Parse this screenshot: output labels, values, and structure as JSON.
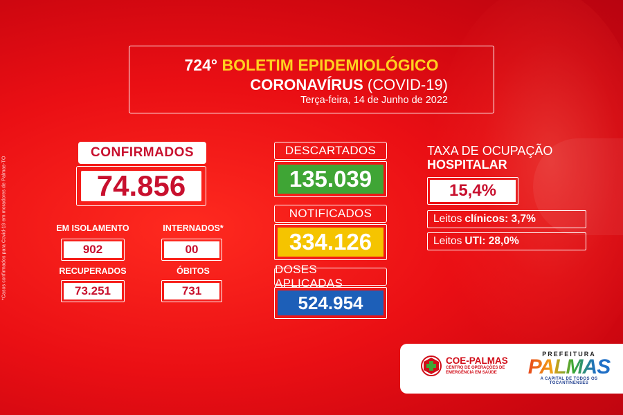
{
  "header": {
    "number": "724°",
    "title": "BOLETIM EPIDEMIOLÓGICO",
    "subtitle_bold": "CORONAVÍRUS",
    "subtitle_rest": " (COVID-19)",
    "date": "Terça-feira, 14 de Junho de 2022"
  },
  "side_note": "*Casos confirmados para Covid-19 em moradores de Palmas-TO",
  "left": {
    "confirmed_label": "CONFIRMADOS",
    "confirmed_value": "74.856",
    "isolation_label": "EM ISOLAMENTO",
    "isolation_value": "902",
    "hospitalized_label": "INTERNADOS*",
    "hospitalized_value": "00",
    "recovered_label": "RECUPERADOS",
    "recovered_value": "73.251",
    "deaths_label": "ÓBITOS",
    "deaths_value": "731"
  },
  "middle": {
    "discarded_label": "DESCARTADOS",
    "discarded_value": "135.039",
    "notified_label": "NOTIFICADOS",
    "notified_value": "334.126",
    "doses_label": "DOSES APLICADAS",
    "doses_value": "524.954"
  },
  "right": {
    "title_line1": "TAXA DE OCUPAÇÃO",
    "title_line2": "HOSPITALAR",
    "rate_value": "15,4%",
    "clinical_prefix": "Leitos",
    "clinical_value": "clínicos: 3,7%",
    "icu_prefix": "Leitos",
    "icu_value": "UTI: 28,0%"
  },
  "footer": {
    "coe_name": "COE-PALMAS",
    "coe_sub1": "CENTRO DE OPERAÇÕES DE",
    "coe_sub2": "EMERGÊNCIA EM SAÚDE",
    "pref_top": "PREFEITURA",
    "pref_name": "PALMAS",
    "pref_sub": "A CAPITAL DE TODOS OS TOCANTINENSES"
  },
  "colors": {
    "background": "#e3101a",
    "accent_yellow": "#ffd21f",
    "green": "#3fa535",
    "yellow": "#f5c400",
    "blue": "#1d5fb8",
    "text_red": "#c8102e"
  }
}
